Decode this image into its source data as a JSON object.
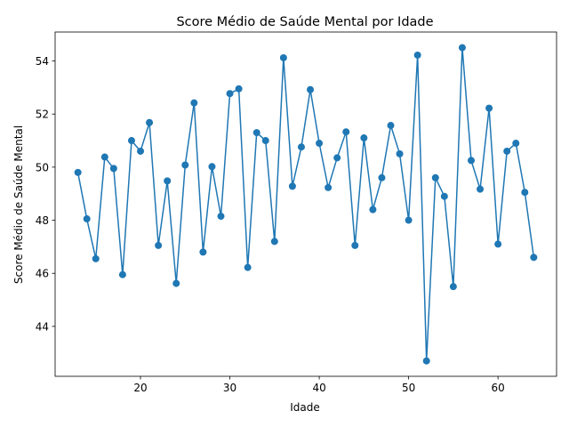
{
  "chart_data": {
    "type": "line",
    "title": "Score Médio de Saúde Mental por Idade",
    "xlabel": "Idade",
    "ylabel": "Score Médio de Saúde Mental",
    "xlim": [
      10.45,
      66.55
    ],
    "ylim": [
      42.12,
      55.09
    ],
    "xticks": [
      20,
      30,
      40,
      50,
      60
    ],
    "yticks": [
      44,
      46,
      48,
      50,
      52,
      54
    ],
    "grid": false,
    "legend": "none",
    "series": [
      {
        "color": "#1f77b4",
        "marker": "circle",
        "x": [
          13,
          14,
          15,
          16,
          17,
          18,
          19,
          20,
          21,
          22,
          23,
          24,
          25,
          26,
          27,
          28,
          29,
          30,
          31,
          32,
          33,
          34,
          35,
          36,
          37,
          38,
          39,
          40,
          41,
          42,
          43,
          44,
          45,
          46,
          47,
          48,
          49,
          50,
          51,
          52,
          53,
          54,
          55,
          56,
          57,
          58,
          59,
          60,
          61,
          62,
          63,
          64
        ],
        "y": [
          49.8,
          48.05,
          46.55,
          50.38,
          49.95,
          45.95,
          51.0,
          50.6,
          51.68,
          47.05,
          49.48,
          45.62,
          50.08,
          52.42,
          46.8,
          50.02,
          48.15,
          52.77,
          52.95,
          46.22,
          51.3,
          51.0,
          47.2,
          54.12,
          49.28,
          50.76,
          52.92,
          50.9,
          49.23,
          50.35,
          51.33,
          47.05,
          51.1,
          48.4,
          49.6,
          51.57,
          50.5,
          48.0,
          54.22,
          42.7,
          49.6,
          48.9,
          45.5,
          54.5,
          50.25,
          49.17,
          52.22,
          47.1,
          50.6,
          50.9,
          49.05,
          46.6
        ]
      }
    ]
  }
}
